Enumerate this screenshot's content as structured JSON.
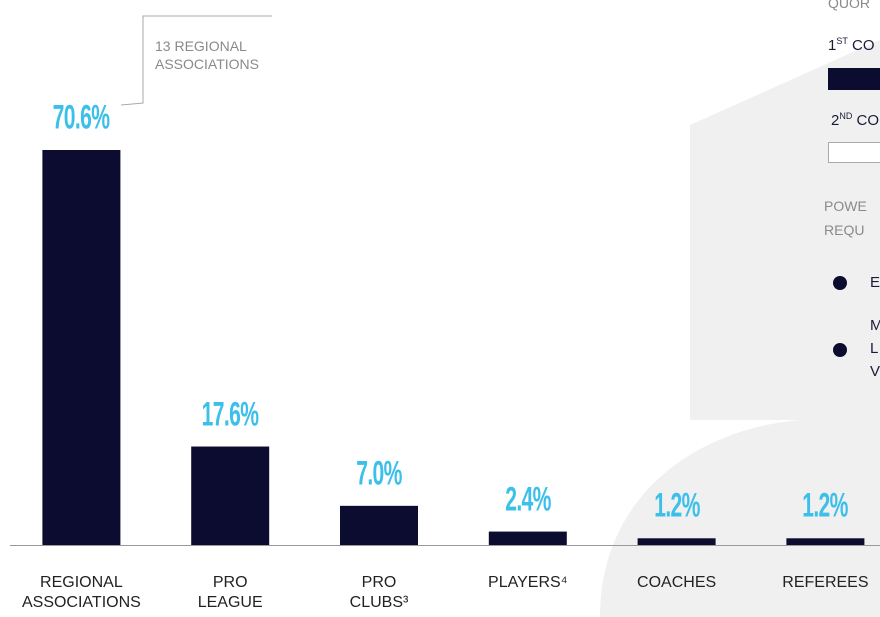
{
  "chart_data": {
    "type": "bar",
    "categories": [
      "REGIONAL ASSOCIATIONS",
      "PRO LEAGUE",
      "PRO CLUBS³",
      "PLAYERS⁴",
      "COACHES",
      "REFEREES"
    ],
    "values": [
      70.6,
      17.6,
      7.0,
      2.4,
      1.2,
      1.2
    ],
    "value_labels": [
      "70.6%",
      "17.6%",
      "7.0%",
      "2.4%",
      "1.2%",
      "1.2%"
    ],
    "color": "#0b0c2f",
    "label_color": "#3cc0ea",
    "ylim": [
      0,
      70.6
    ],
    "annotation": "13 REGIONAL ASSOCIATIONS"
  },
  "side_panel": {
    "heading": "QUOR",
    "items": [
      {
        "ordinal": "1",
        "suffix": "ST",
        "text": "CO"
      },
      {
        "ordinal": "2",
        "suffix": "ND",
        "text": "CO"
      }
    ],
    "power_lines": [
      "POWE",
      "REQU"
    ],
    "bullets": [
      [
        "E"
      ],
      [
        "M",
        "L",
        "V"
      ]
    ]
  }
}
